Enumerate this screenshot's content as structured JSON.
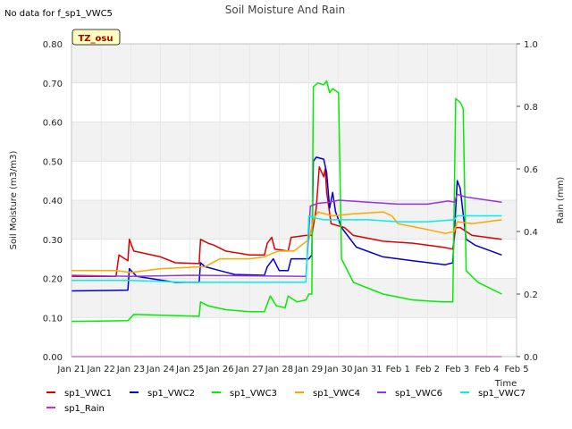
{
  "chart_data": {
    "type": "line",
    "title": "Soil Moisture And Rain",
    "note": "No data for f_sp1_VWC5",
    "site_label": "TZ_osu",
    "xlabel": "Time",
    "ylabel": "Soil Moisture (m3/m3)",
    "y2label": "Rain (mm)",
    "ylim": [
      0,
      0.8
    ],
    "y2lim": [
      0,
      1.0
    ],
    "xlim": [
      0,
      15
    ],
    "x_ticks": [
      {
        "x": 0,
        "label": "Jan 21"
      },
      {
        "x": 1,
        "label": "Jan 22"
      },
      {
        "x": 2,
        "label": "Jan 23"
      },
      {
        "x": 3,
        "label": "Jan 24"
      },
      {
        "x": 4,
        "label": "Jan 25"
      },
      {
        "x": 5,
        "label": "Jan 26"
      },
      {
        "x": 6,
        "label": "Jan 27"
      },
      {
        "x": 7,
        "label": "Jan 28"
      },
      {
        "x": 8,
        "label": "Jan 29"
      },
      {
        "x": 9,
        "label": "Jan 30"
      },
      {
        "x": 10,
        "label": "Jan 31"
      },
      {
        "x": 11,
        "label": "Feb 1"
      },
      {
        "x": 12,
        "label": "Feb 2"
      },
      {
        "x": 13,
        "label": "Feb 3"
      },
      {
        "x": 14,
        "label": "Feb 4"
      },
      {
        "x": 15,
        "label": "Feb 5"
      }
    ],
    "y_ticks": [
      {
        "v": 0.0,
        "label": "0.00"
      },
      {
        "v": 0.1,
        "label": "0.10"
      },
      {
        "v": 0.2,
        "label": "0.20"
      },
      {
        "v": 0.3,
        "label": "0.30"
      },
      {
        "v": 0.4,
        "label": "0.40"
      },
      {
        "v": 0.5,
        "label": "0.50"
      },
      {
        "v": 0.6,
        "label": "0.60"
      },
      {
        "v": 0.7,
        "label": "0.70"
      },
      {
        "v": 0.8,
        "label": "0.80"
      }
    ],
    "y2_ticks": [
      {
        "v": 0.0,
        "label": "0.0"
      },
      {
        "v": 0.2,
        "label": "0.2"
      },
      {
        "v": 0.4,
        "label": "0.4"
      },
      {
        "v": 0.6,
        "label": "0.6"
      },
      {
        "v": 0.8,
        "label": "0.8"
      },
      {
        "v": 1.0,
        "label": "1.0"
      }
    ],
    "grid": true,
    "legend_placement": "bottom",
    "series": [
      {
        "name": "sp1_VWC1",
        "color": "#dd0000",
        "axis": "left",
        "points": [
          [
            0,
            0.205
          ],
          [
            1.5,
            0.205
          ],
          [
            1.6,
            0.26
          ],
          [
            1.9,
            0.245
          ],
          [
            1.95,
            0.3
          ],
          [
            2.1,
            0.27
          ],
          [
            3,
            0.255
          ],
          [
            3.5,
            0.24
          ],
          [
            4.3,
            0.238
          ],
          [
            4.35,
            0.3
          ],
          [
            4.6,
            0.29
          ],
          [
            4.8,
            0.285
          ],
          [
            5.2,
            0.27
          ],
          [
            6,
            0.26
          ],
          [
            6.5,
            0.26
          ],
          [
            6.6,
            0.29
          ],
          [
            6.75,
            0.305
          ],
          [
            6.85,
            0.275
          ],
          [
            7.3,
            0.27
          ],
          [
            7.4,
            0.305
          ],
          [
            7.9,
            0.31
          ],
          [
            8.1,
            0.31
          ],
          [
            8.25,
            0.38
          ],
          [
            8.35,
            0.485
          ],
          [
            8.5,
            0.46
          ],
          [
            8.55,
            0.48
          ],
          [
            8.6,
            0.42
          ],
          [
            8.75,
            0.34
          ],
          [
            9.2,
            0.33
          ],
          [
            9.5,
            0.31
          ],
          [
            10.5,
            0.295
          ],
          [
            11.5,
            0.29
          ],
          [
            12.5,
            0.28
          ],
          [
            12.85,
            0.275
          ],
          [
            12.95,
            0.33
          ],
          [
            13.1,
            0.33
          ],
          [
            13.5,
            0.31
          ],
          [
            14.5,
            0.3
          ]
        ]
      },
      {
        "name": "sp1_VWC2",
        "color": "#0000cc",
        "axis": "left",
        "points": [
          [
            0,
            0.168
          ],
          [
            1.9,
            0.17
          ],
          [
            1.95,
            0.225
          ],
          [
            2.2,
            0.205
          ],
          [
            3.5,
            0.19
          ],
          [
            4.3,
            0.19
          ],
          [
            4.35,
            0.24
          ],
          [
            4.5,
            0.23
          ],
          [
            5,
            0.22
          ],
          [
            5.5,
            0.21
          ],
          [
            6.5,
            0.208
          ],
          [
            6.6,
            0.23
          ],
          [
            6.8,
            0.25
          ],
          [
            7.0,
            0.22
          ],
          [
            7.3,
            0.22
          ],
          [
            7.4,
            0.25
          ],
          [
            8.0,
            0.25
          ],
          [
            8.1,
            0.26
          ],
          [
            8.15,
            0.5
          ],
          [
            8.25,
            0.51
          ],
          [
            8.5,
            0.505
          ],
          [
            8.6,
            0.47
          ],
          [
            8.7,
            0.38
          ],
          [
            8.8,
            0.42
          ],
          [
            8.9,
            0.37
          ],
          [
            9.1,
            0.33
          ],
          [
            9.6,
            0.28
          ],
          [
            10.5,
            0.255
          ],
          [
            11.5,
            0.245
          ],
          [
            12.6,
            0.235
          ],
          [
            12.85,
            0.24
          ],
          [
            13.0,
            0.45
          ],
          [
            13.1,
            0.43
          ],
          [
            13.3,
            0.3
          ],
          [
            13.6,
            0.285
          ],
          [
            14.5,
            0.26
          ]
        ]
      },
      {
        "name": "sp1_VWC3",
        "color": "#00ee00",
        "axis": "left",
        "points": [
          [
            0,
            0.09
          ],
          [
            1.9,
            0.092
          ],
          [
            2.1,
            0.108
          ],
          [
            3,
            0.106
          ],
          [
            4.3,
            0.103
          ],
          [
            4.35,
            0.14
          ],
          [
            4.6,
            0.13
          ],
          [
            5.2,
            0.12
          ],
          [
            6,
            0.115
          ],
          [
            6.5,
            0.115
          ],
          [
            6.7,
            0.155
          ],
          [
            6.9,
            0.13
          ],
          [
            7.2,
            0.125
          ],
          [
            7.3,
            0.155
          ],
          [
            7.6,
            0.14
          ],
          [
            7.9,
            0.145
          ],
          [
            8.0,
            0.16
          ],
          [
            8.1,
            0.16
          ],
          [
            8.15,
            0.69
          ],
          [
            8.3,
            0.7
          ],
          [
            8.5,
            0.695
          ],
          [
            8.6,
            0.705
          ],
          [
            8.7,
            0.675
          ],
          [
            8.8,
            0.685
          ],
          [
            9.0,
            0.675
          ],
          [
            9.1,
            0.25
          ],
          [
            9.5,
            0.19
          ],
          [
            10.5,
            0.16
          ],
          [
            11.5,
            0.145
          ],
          [
            12.5,
            0.14
          ],
          [
            12.85,
            0.14
          ],
          [
            12.95,
            0.66
          ],
          [
            13.1,
            0.65
          ],
          [
            13.2,
            0.635
          ],
          [
            13.3,
            0.22
          ],
          [
            13.7,
            0.19
          ],
          [
            14.5,
            0.16
          ]
        ]
      },
      {
        "name": "sp1_VWC4",
        "color": "#ffa500",
        "axis": "left",
        "points": [
          [
            0,
            0.22
          ],
          [
            1.5,
            0.22
          ],
          [
            2.0,
            0.215
          ],
          [
            3.0,
            0.225
          ],
          [
            4.5,
            0.23
          ],
          [
            5,
            0.25
          ],
          [
            6,
            0.25
          ],
          [
            6.5,
            0.255
          ],
          [
            6.8,
            0.265
          ],
          [
            7.0,
            0.27
          ],
          [
            7.5,
            0.27
          ],
          [
            8.0,
            0.3
          ],
          [
            8.15,
            0.35
          ],
          [
            8.3,
            0.37
          ],
          [
            8.8,
            0.36
          ],
          [
            9.5,
            0.365
          ],
          [
            10.5,
            0.37
          ],
          [
            10.8,
            0.36
          ],
          [
            11,
            0.34
          ],
          [
            12,
            0.325
          ],
          [
            12.6,
            0.315
          ],
          [
            12.9,
            0.32
          ],
          [
            13.0,
            0.345
          ],
          [
            13.5,
            0.34
          ],
          [
            14.5,
            0.35
          ]
        ]
      },
      {
        "name": "sp1_VWC6",
        "color": "#9933dd",
        "axis": "left",
        "points": [
          [
            0,
            0.208
          ],
          [
            2,
            0.205
          ],
          [
            4,
            0.208
          ],
          [
            7.9,
            0.205
          ],
          [
            8.05,
            0.385
          ],
          [
            8.3,
            0.392
          ],
          [
            8.7,
            0.395
          ],
          [
            9.0,
            0.4
          ],
          [
            10,
            0.395
          ],
          [
            11,
            0.39
          ],
          [
            12,
            0.39
          ],
          [
            12.7,
            0.398
          ],
          [
            12.9,
            0.395
          ],
          [
            13.0,
            0.415
          ],
          [
            13.3,
            0.408
          ],
          [
            14.5,
            0.395
          ]
        ]
      },
      {
        "name": "sp1_VWC7",
        "color": "#00eeee",
        "axis": "left",
        "points": [
          [
            0,
            0.195
          ],
          [
            2,
            0.195
          ],
          [
            4,
            0.19
          ],
          [
            6,
            0.19
          ],
          [
            7.9,
            0.19
          ],
          [
            8.0,
            0.36
          ],
          [
            8.2,
            0.355
          ],
          [
            8.5,
            0.35
          ],
          [
            9.0,
            0.35
          ],
          [
            10,
            0.35
          ],
          [
            11,
            0.345
          ],
          [
            12,
            0.345
          ],
          [
            12.9,
            0.35
          ],
          [
            13.0,
            0.36
          ],
          [
            14.5,
            0.36
          ]
        ]
      },
      {
        "name": "sp1_Rain",
        "color": "#dd22dd",
        "axis": "right",
        "points": [
          [
            0,
            0
          ],
          [
            14.5,
            0
          ]
        ]
      }
    ]
  }
}
